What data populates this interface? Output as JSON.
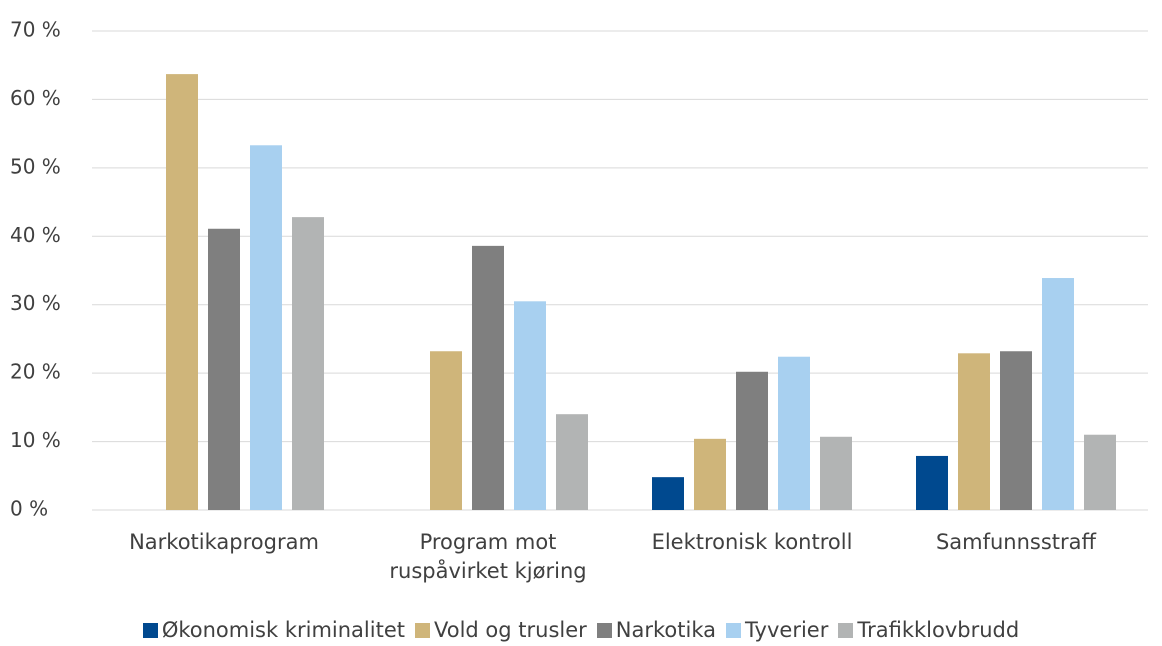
{
  "chart_data": {
    "type": "bar",
    "categories": [
      "Narkotikaprogram",
      "Program mot ruspåvirket kjøring",
      "Elektronisk kontroll",
      "Samfunnsstraff"
    ],
    "series": [
      {
        "name": "Økonomisk kriminalitet",
        "color": "#00498f",
        "values": [
          null,
          null,
          4.8,
          7.9
        ]
      },
      {
        "name": "Vold og trusler",
        "color": "#cfb57a",
        "values": [
          63.7,
          23.2,
          10.4,
          22.9
        ]
      },
      {
        "name": "Narkotika",
        "color": "#7f7f7f",
        "values": [
          41.1,
          38.6,
          20.2,
          23.2
        ]
      },
      {
        "name": "Tyverier",
        "color": "#a8d0f0",
        "values": [
          53.3,
          30.5,
          22.4,
          33.9
        ]
      },
      {
        "name": "Trafikklovbrudd",
        "color": "#b2b4b4",
        "values": [
          42.8,
          14.0,
          10.7,
          11.0
        ]
      }
    ],
    "ylim": [
      0,
      70
    ],
    "yticks": [
      {
        "value": 0,
        "label": "0 %"
      },
      {
        "value": 10,
        "label": "10 %"
      },
      {
        "value": 20,
        "label": "20 %"
      },
      {
        "value": 30,
        "label": "30 %"
      },
      {
        "value": 40,
        "label": "40 %"
      },
      {
        "value": 50,
        "label": "50 %"
      },
      {
        "value": 60,
        "label": "60 %"
      },
      {
        "value": 70,
        "label": "70 %"
      }
    ],
    "grid": true,
    "legend": "bottom"
  }
}
